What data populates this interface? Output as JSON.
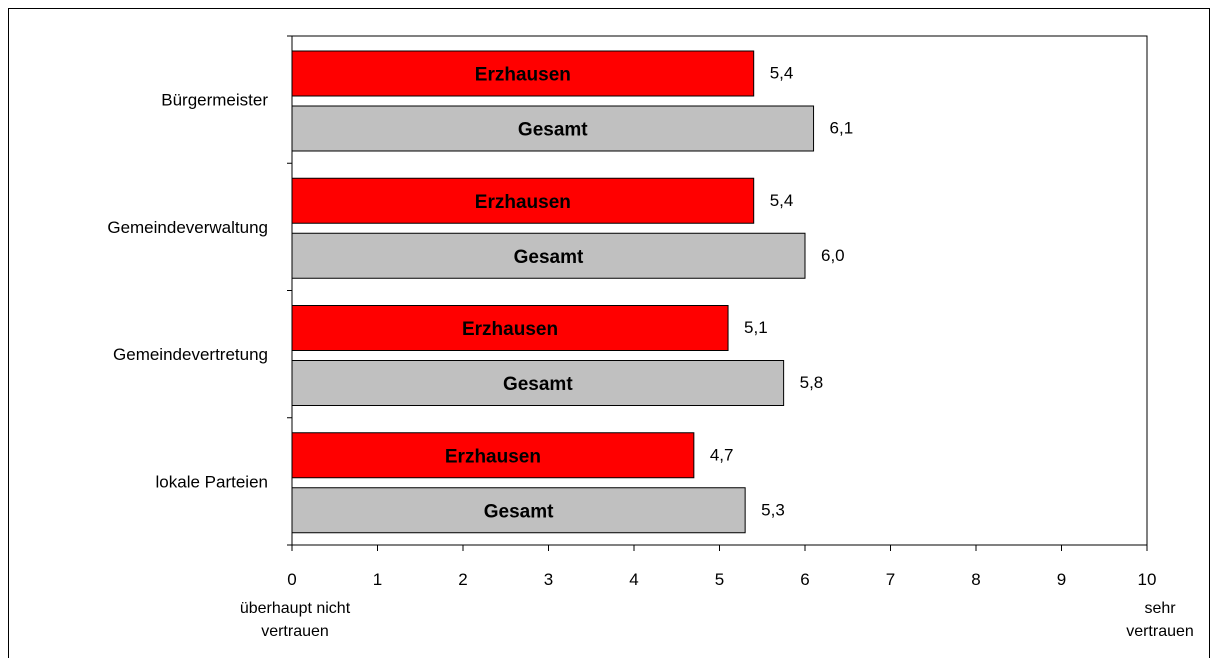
{
  "chart_data": {
    "type": "bar",
    "orientation": "horizontal",
    "categories": [
      "Bürgermeister",
      "Gemeindeverwaltung",
      "Gemeindevertretung",
      "lokale Parteien"
    ],
    "series": [
      {
        "name": "Erzhausen",
        "values": [
          5.4,
          5.4,
          5.1,
          4.7
        ],
        "value_labels": [
          "5,4",
          "5,4",
          "5,1",
          "4,7"
        ],
        "color": "#ff0000"
      },
      {
        "name": "Gesamt",
        "values": [
          6.1,
          6.0,
          5.75,
          5.3
        ],
        "value_labels": [
          "6,1",
          "6,0",
          "5,8",
          "5,3"
        ],
        "color": "#c0c0c0"
      }
    ],
    "xlim": [
      0,
      10
    ],
    "xticks": [
      "0",
      "1",
      "2",
      "3",
      "4",
      "5",
      "6",
      "7",
      "8",
      "9",
      "10"
    ],
    "x_end_labels": {
      "left": [
        "überhaupt nicht",
        "vertrauen"
      ],
      "right": [
        "sehr",
        "vertrauen"
      ]
    },
    "legend": "none",
    "grid": false,
    "bar_labels_inside": true
  }
}
